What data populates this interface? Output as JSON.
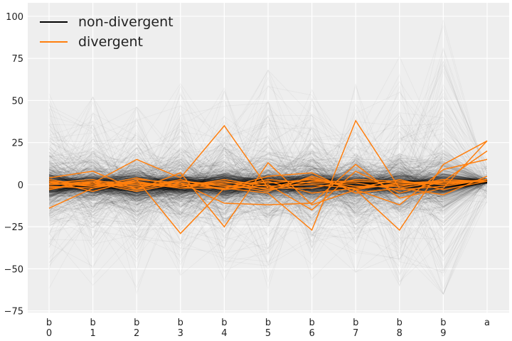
{
  "chart_data": {
    "type": "line",
    "subtype": "parallel-coordinates",
    "title": "",
    "xlabel": "",
    "ylabel": "",
    "categories": [
      [
        "b",
        "0"
      ],
      [
        "b",
        "1"
      ],
      [
        "b",
        "2"
      ],
      [
        "b",
        "3"
      ],
      [
        "b",
        "4"
      ],
      [
        "b",
        "5"
      ],
      [
        "b",
        "6"
      ],
      [
        "b",
        "7"
      ],
      [
        "b",
        "8"
      ],
      [
        "b",
        "9"
      ],
      [
        "a"
      ]
    ],
    "ylim": [
      -76,
      108
    ],
    "yticks": [
      -75,
      -50,
      -25,
      0,
      25,
      50,
      75,
      100
    ],
    "grid": true,
    "legend": {
      "placement": "top-left",
      "entries": [
        {
          "label": "non-divergent",
          "color": "#000000"
        },
        {
          "label": "divergent",
          "color": "#ff7f0e"
        }
      ]
    },
    "colors": {
      "background": "#eeeeee",
      "grid": "#ffffff",
      "non_divergent": "#000000",
      "divergent": "#ff7f0e"
    },
    "non_divergent_summary": {
      "description_values": "approximate envelope of the many semi-transparent non-divergent traces",
      "core_upper": [
        6,
        5,
        6,
        5,
        6,
        5,
        6,
        5,
        5,
        5,
        4
      ],
      "core_lower": [
        -6,
        -5,
        -6,
        -5,
        -6,
        -5,
        -6,
        -5,
        -5,
        -5,
        1
      ],
      "mid_upper": [
        25,
        24,
        26,
        24,
        27,
        25,
        26,
        25,
        24,
        25,
        6
      ],
      "mid_lower": [
        -25,
        -24,
        -26,
        -24,
        -27,
        -25,
        -26,
        -25,
        -24,
        -25,
        -1
      ],
      "outer_upper": [
        60,
        52,
        46,
        60,
        64,
        68,
        58,
        60,
        76,
        100,
        30
      ],
      "outer_lower": [
        -66,
        -60,
        -66,
        -55,
        -60,
        -62,
        -56,
        -52,
        -60,
        -65,
        -25
      ]
    },
    "divergent_series": [
      {
        "values": [
          -14,
          -2,
          3,
          -29,
          -2,
          -5,
          -27,
          38,
          -2,
          -6,
          5
        ]
      },
      {
        "values": [
          4,
          8,
          -3,
          7,
          -25,
          13,
          -12,
          -3,
          -27,
          12,
          26
        ]
      },
      {
        "values": [
          -2,
          1,
          15,
          4,
          35,
          -2,
          4,
          -3,
          -12,
          9,
          15
        ]
      },
      {
        "values": [
          2,
          -4,
          3,
          1,
          -11,
          -12,
          -11,
          12,
          -8,
          -2,
          26
        ]
      },
      {
        "values": [
          0,
          1,
          -4,
          1,
          -3,
          0,
          -15,
          8,
          -5,
          2,
          20
        ]
      },
      {
        "values": [
          -3,
          2,
          1,
          -2,
          -2,
          5,
          7,
          -5,
          -2,
          2,
          2
        ]
      },
      {
        "values": [
          3,
          -1,
          4,
          -1,
          2,
          -3,
          2,
          2,
          1,
          1,
          3
        ]
      },
      {
        "values": [
          1,
          3,
          -2,
          3,
          -3,
          2,
          -5,
          -2,
          3,
          -3,
          2
        ]
      },
      {
        "values": [
          -1,
          -2,
          2,
          -2,
          1,
          1,
          3,
          -1,
          -1,
          3,
          2
        ]
      },
      {
        "values": [
          2,
          0,
          -1,
          2,
          -1,
          -2,
          -2,
          3,
          2,
          0,
          3
        ]
      },
      {
        "values": [
          -2,
          1,
          0,
          -1,
          3,
          -1,
          0,
          -2,
          0,
          1,
          2
        ]
      },
      {
        "values": [
          1,
          -1,
          1,
          0,
          -2,
          3,
          1,
          1,
          -3,
          -1,
          3
        ]
      },
      {
        "values": [
          0,
          2,
          -3,
          2,
          0,
          -4,
          5,
          -3,
          1,
          2,
          2
        ]
      }
    ]
  }
}
